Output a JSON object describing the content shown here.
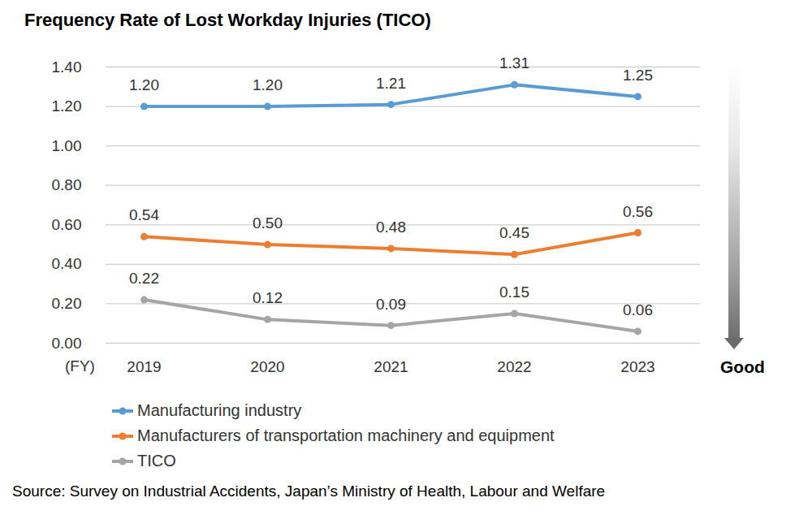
{
  "chart_data": {
    "type": "line",
    "title": "Frequency Rate of Lost Workday Injuries (TICO)",
    "xlabel": "(FY)",
    "annotation": "Good",
    "source": "Source: Survey on Industrial Accidents, Japan’s Ministry of Health, Labour and Welfare",
    "categories": [
      "2019",
      "2020",
      "2021",
      "2022",
      "2023"
    ],
    "series": [
      {
        "name": "Manufacturing industry",
        "color": "#5b9bd5",
        "values": [
          1.2,
          1.2,
          1.21,
          1.31,
          1.25
        ],
        "value_labels": [
          "1.20",
          "1.20",
          "1.21",
          "1.31",
          "1.25"
        ]
      },
      {
        "name": "Manufacturers of transportation machinery and equipment",
        "color": "#ed7d31",
        "values": [
          0.54,
          0.5,
          0.48,
          0.45,
          0.56
        ],
        "value_labels": [
          "0.54",
          "0.50",
          "0.48",
          "0.45",
          "0.56"
        ]
      },
      {
        "name": "TICO",
        "color": "#a5a5a5",
        "values": [
          0.22,
          0.12,
          0.09,
          0.15,
          0.06
        ],
        "value_labels": [
          "0.22",
          "0.12",
          "0.09",
          "0.15",
          "0.06"
        ]
      }
    ],
    "ylim": [
      0,
      1.4
    ],
    "yticks": [
      {
        "value": 0,
        "label": "0.00"
      },
      {
        "value": 0.2,
        "label": "0.20"
      },
      {
        "value": 0.4,
        "label": "0.40"
      },
      {
        "value": 0.6,
        "label": "0.60"
      },
      {
        "value": 0.8,
        "label": "0.80"
      },
      {
        "value": 1,
        "label": "1.00"
      },
      {
        "value": 1.2,
        "label": "1.20"
      },
      {
        "value": 1.4,
        "label": "1.40"
      }
    ],
    "grid": true,
    "legend": "bottom",
    "data_labels": true,
    "marker": "circle"
  }
}
